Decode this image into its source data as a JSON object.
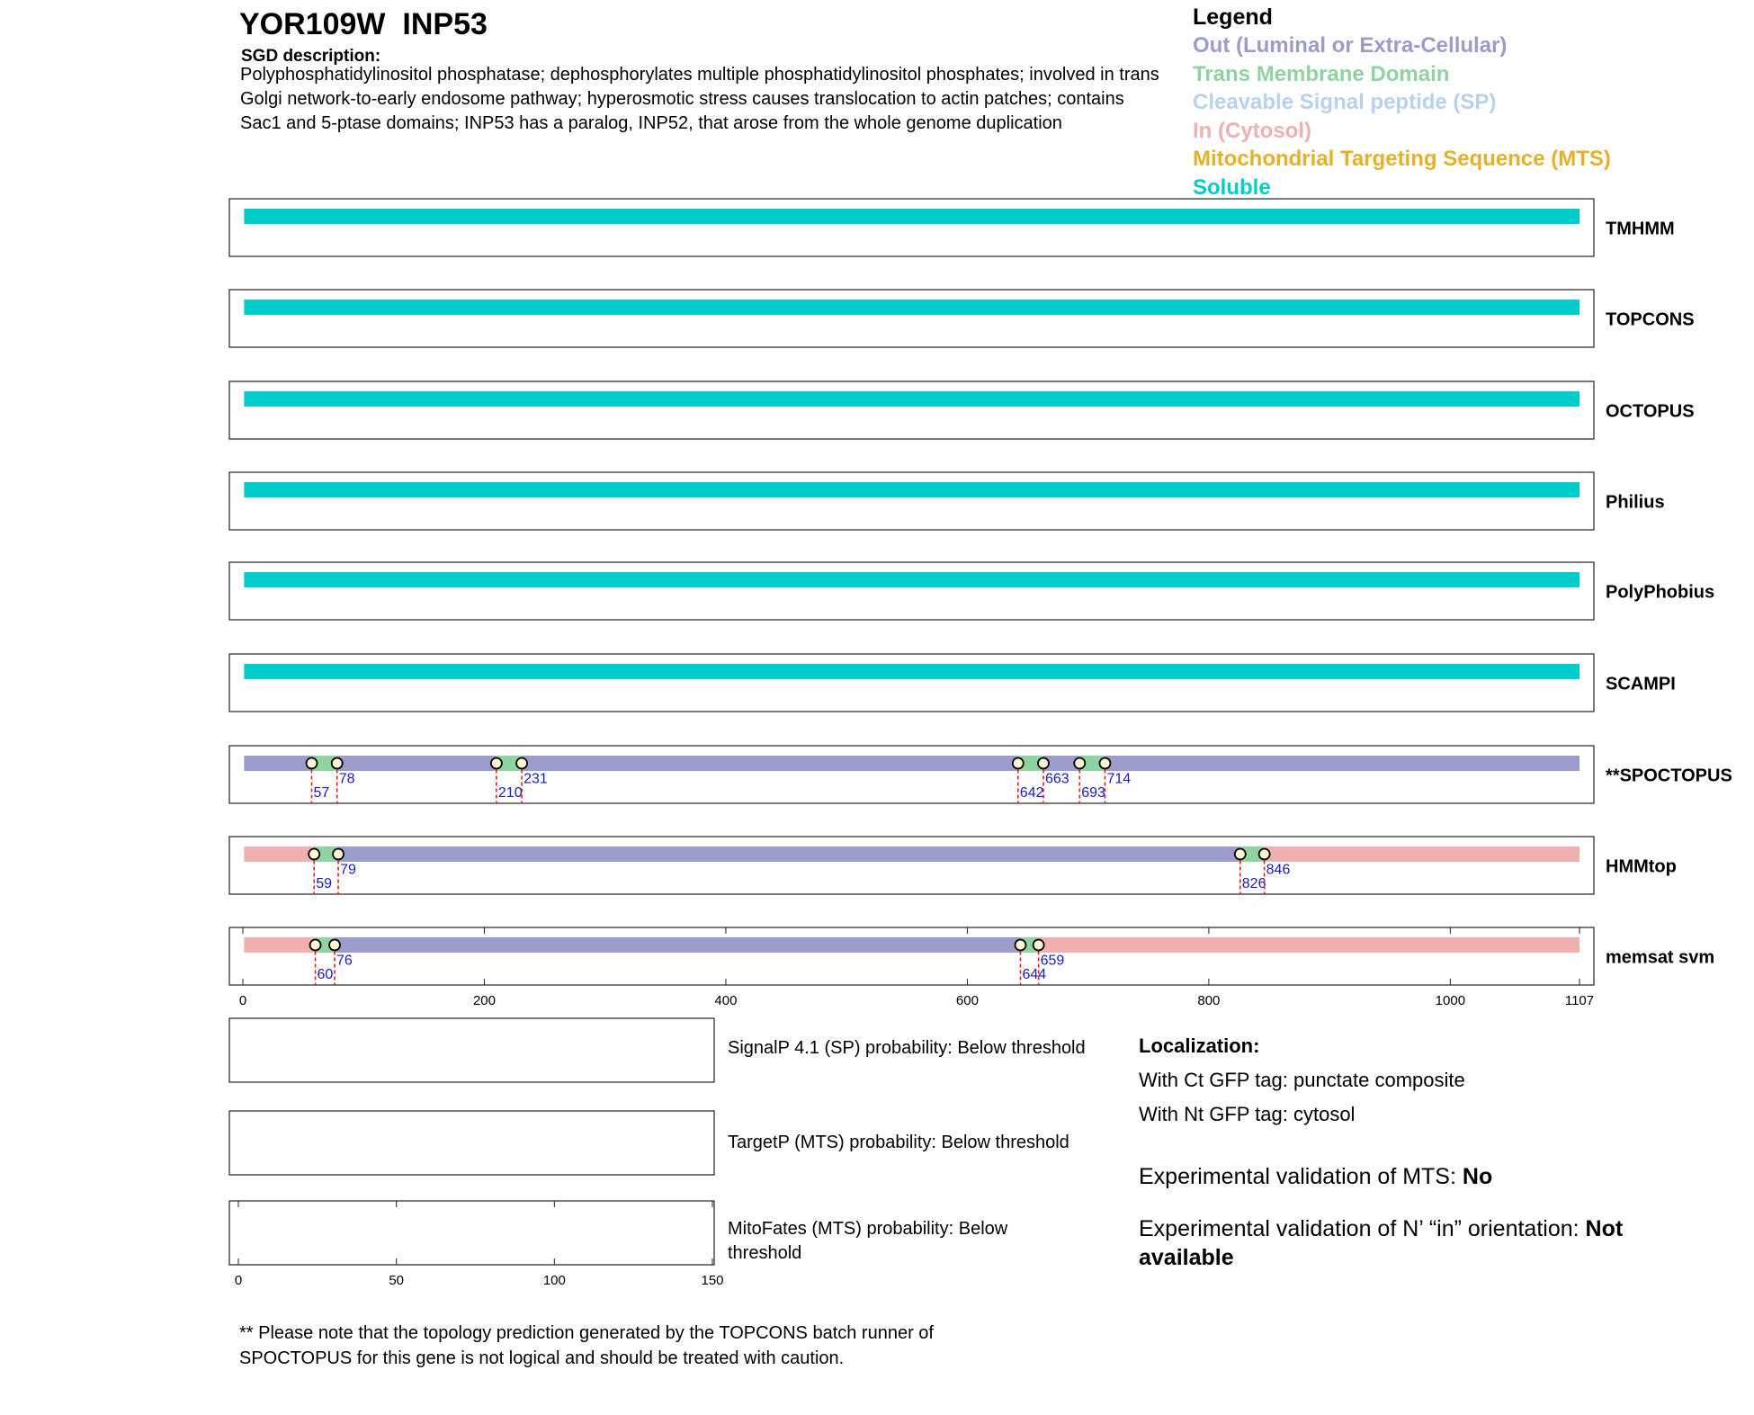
{
  "header": {
    "gene_id": "YOR109W",
    "gene_name": "INP53",
    "sgd_label": "SGD description:",
    "description": "Polyphosphatidylinositol phosphatase; dephosphorylates multiple phosphatidylinositol phosphates; involved in trans Golgi network-to-early endosome pathway; hyperosmotic stress causes translocation to actin patches; contains Sac1 and 5-ptase domains; INP53 has a paralog, INP52, that arose from the whole genome duplication"
  },
  "legend": {
    "title": "Legend",
    "items": [
      {
        "name": "Out (Luminal or Extra-Cellular)",
        "color": "#9c9ccc"
      },
      {
        "name": "Trans Membrane Domain",
        "color": "#8fd3a0"
      },
      {
        "name": "Cleavable Signal peptide (SP)",
        "color": "#b8d2ee"
      },
      {
        "name": "In (Cytosol)",
        "color": "#f0b0b0"
      },
      {
        "name": "Mitochondrial Targeting Sequence (MTS)",
        "color": "#e6b02a"
      },
      {
        "name": "Soluble",
        "color": "#00cccc"
      }
    ]
  },
  "tracks": {
    "xlim": [
      0,
      1107
    ],
    "xticks": [
      0,
      200,
      400,
      600,
      800,
      1000,
      1107
    ],
    "items": [
      {
        "name": "TMHMM",
        "segments": [
          {
            "color": "#00cccc",
            "start": 1,
            "end": 1107
          }
        ],
        "markers": []
      },
      {
        "name": "TOPCONS",
        "segments": [
          {
            "color": "#00cccc",
            "start": 1,
            "end": 1107
          }
        ],
        "markers": []
      },
      {
        "name": "OCTOPUS",
        "segments": [
          {
            "color": "#00cccc",
            "start": 1,
            "end": 1107
          }
        ],
        "markers": []
      },
      {
        "name": "Philius",
        "segments": [
          {
            "color": "#00cccc",
            "start": 1,
            "end": 1107
          }
        ],
        "markers": []
      },
      {
        "name": "PolyPhobius",
        "segments": [
          {
            "color": "#00cccc",
            "start": 1,
            "end": 1107
          }
        ],
        "markers": []
      },
      {
        "name": "SCAMPI",
        "segments": [
          {
            "color": "#00cccc",
            "start": 1,
            "end": 1107
          }
        ],
        "markers": []
      },
      {
        "name": "**SPOCTOPUS",
        "segments": [
          {
            "color": "#9c9ccc",
            "start": 1,
            "end": 57
          },
          {
            "color": "#8fd3a0",
            "start": 57,
            "end": 78
          },
          {
            "color": "#9c9ccc",
            "start": 78,
            "end": 210
          },
          {
            "color": "#8fd3a0",
            "start": 210,
            "end": 231
          },
          {
            "color": "#9c9ccc",
            "start": 231,
            "end": 642
          },
          {
            "color": "#8fd3a0",
            "start": 642,
            "end": 663
          },
          {
            "color": "#9c9ccc",
            "start": 663,
            "end": 693
          },
          {
            "color": "#8fd3a0",
            "start": 693,
            "end": 714
          },
          {
            "color": "#9c9ccc",
            "start": 714,
            "end": 1107
          }
        ],
        "markers": [
          57,
          78,
          210,
          231,
          642,
          663,
          693,
          714
        ]
      },
      {
        "name": "HMMtop",
        "segments": [
          {
            "color": "#f0b0b0",
            "start": 1,
            "end": 59
          },
          {
            "color": "#8fd3a0",
            "start": 59,
            "end": 79
          },
          {
            "color": "#9c9ccc",
            "start": 79,
            "end": 826
          },
          {
            "color": "#8fd3a0",
            "start": 826,
            "end": 846
          },
          {
            "color": "#f0b0b0",
            "start": 846,
            "end": 1107
          }
        ],
        "markers": [
          59,
          79,
          826,
          846
        ]
      },
      {
        "name": "memsat svm",
        "segments": [
          {
            "color": "#f0b0b0",
            "start": 1,
            "end": 60
          },
          {
            "color": "#8fd3a0",
            "start": 60,
            "end": 76
          },
          {
            "color": "#9c9ccc",
            "start": 76,
            "end": 644
          },
          {
            "color": "#8fd3a0",
            "start": 644,
            "end": 659
          },
          {
            "color": "#f0b0b0",
            "start": 659,
            "end": 1107
          }
        ],
        "markers": [
          60,
          76,
          644,
          659
        ]
      }
    ]
  },
  "probabilities": {
    "xlim": [
      0,
      150
    ],
    "xticks": [
      0,
      50,
      100,
      150
    ],
    "items": [
      "SignalP 4.1 (SP) probability: Below threshold",
      "TargetP (MTS) probability: Below threshold",
      "MitoFates (MTS) probability: Below threshold"
    ]
  },
  "localization": {
    "title": "Localization:",
    "ct": "With Ct GFP tag: punctate composite",
    "nt": "With Nt GFP tag: cytosol",
    "mts_label": "Experimental validation of MTS: ",
    "mts_value": "No",
    "orientation_label": "Experimental validation of N’ “in” orientation: ",
    "orientation_value": "Not available"
  },
  "note": "** Please note that the topology prediction generated by the TOPCONS batch runner of SPOCTOPUS for this gene is not logical and should be treated with caution."
}
